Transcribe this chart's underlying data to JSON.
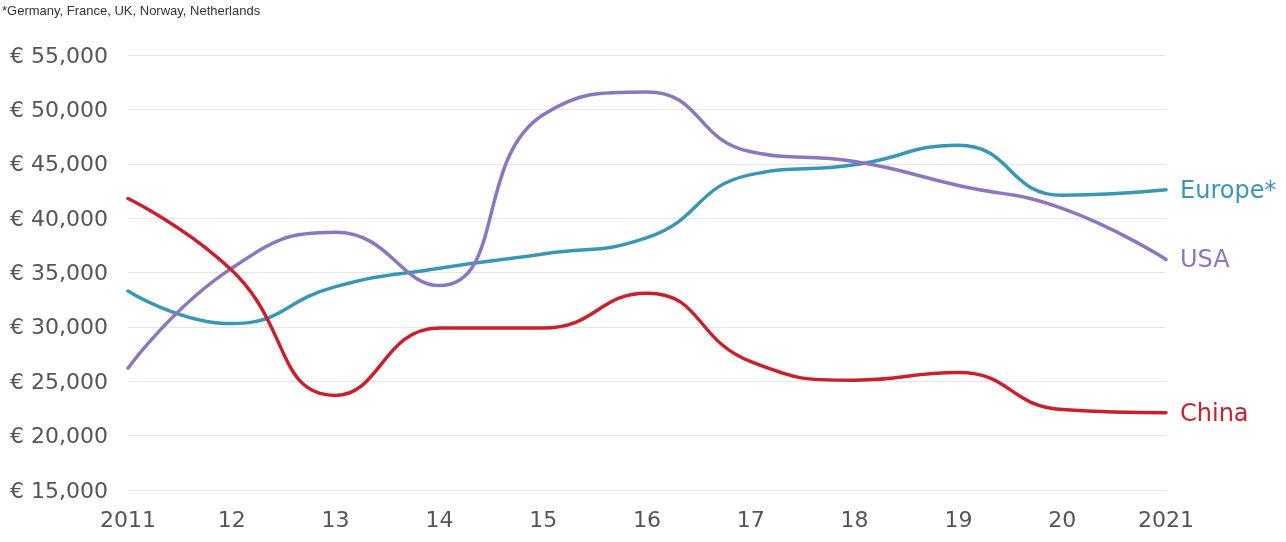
{
  "chart_data": {
    "type": "line",
    "annotations": [
      "*Germany, France, UK, Norway, Netherlands"
    ],
    "categories": [
      "2011",
      "12",
      "13",
      "14",
      "15",
      "16",
      "17",
      "18",
      "19",
      "20",
      "2021"
    ],
    "series": [
      {
        "name": "Europe*",
        "color": "#3a96b5",
        "values": [
          33300,
          30300,
          33700,
          35400,
          36700,
          38200,
          44000,
          44900,
          46700,
          42100,
          42600
        ]
      },
      {
        "name": "USA",
        "color": "#8b76c0",
        "values": [
          26200,
          35400,
          38700,
          33800,
          49500,
          51600,
          46100,
          45200,
          43000,
          40900,
          36200
        ]
      },
      {
        "name": "China",
        "color": "#c8202c",
        "values": [
          41800,
          35200,
          23700,
          29900,
          29900,
          33100,
          26800,
          25100,
          25800,
          22400,
          22100
        ]
      }
    ],
    "ylim": [
      15000,
      55000
    ],
    "yticks": [
      {
        "value": 15000,
        "label": "€ 15,000"
      },
      {
        "value": 20000,
        "label": "€ 20,000"
      },
      {
        "value": 25000,
        "label": "€ 25,000"
      },
      {
        "value": 30000,
        "label": "€ 30,000"
      },
      {
        "value": 35000,
        "label": "€ 35,000"
      },
      {
        "value": 40000,
        "label": "€ 40,000"
      },
      {
        "value": 45000,
        "label": "€ 45,000"
      },
      {
        "value": 50000,
        "label": "€ 50,000"
      },
      {
        "value": 55000,
        "label": "€ 55,000"
      }
    ],
    "grid": "y",
    "legend": false,
    "marker": "none",
    "line_style": "solid"
  }
}
